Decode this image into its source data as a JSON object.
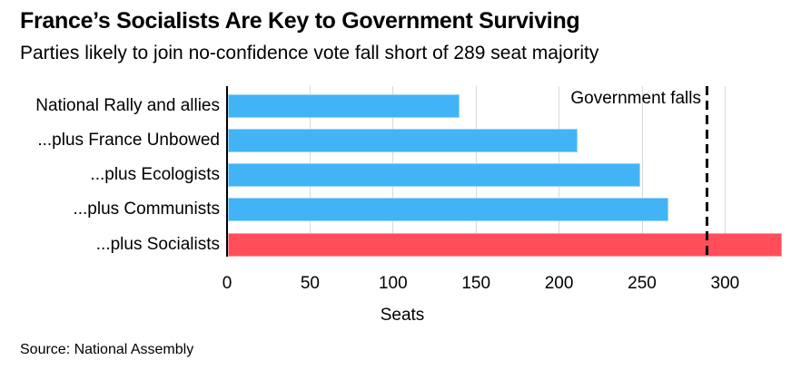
{
  "header": {
    "title": "France’s Socialists Are Key to Government Surviving",
    "subtitle": "Parties likely to join no-confidence vote fall short of 289 seat majority"
  },
  "chart_data": {
    "type": "bar",
    "orientation": "horizontal",
    "title": "France’s Socialists Are Key to Government Surviving",
    "subtitle": "Parties likely to join no-confidence vote fall short of 289 seat majority",
    "categories": [
      "National Rally and allies",
      "...plus France Unbowed",
      "...plus Ecologists",
      "...plus Communists",
      "...plus Socialists"
    ],
    "values": [
      140,
      211,
      249,
      266,
      334
    ],
    "bar_colors": [
      "#42B4F5",
      "#42B4F5",
      "#42B4F5",
      "#42B4F5",
      "#FF4E59"
    ],
    "xlabel": "Seats",
    "x_ticks": [
      0,
      50,
      100,
      150,
      200,
      250,
      300
    ],
    "xlim": [
      0,
      340
    ],
    "grid": "vertical-gridlines",
    "legend": "none",
    "threshold": {
      "value": 289,
      "label": "Government falls"
    }
  },
  "footer": {
    "source": "Source: National Assembly"
  },
  "colors": {
    "bar_blue": "#42B4F5",
    "bar_red": "#FF4E59",
    "gridline": "#D9D9D9",
    "axis": "#000000",
    "threshold_line": "#000000",
    "text": "#000000"
  }
}
